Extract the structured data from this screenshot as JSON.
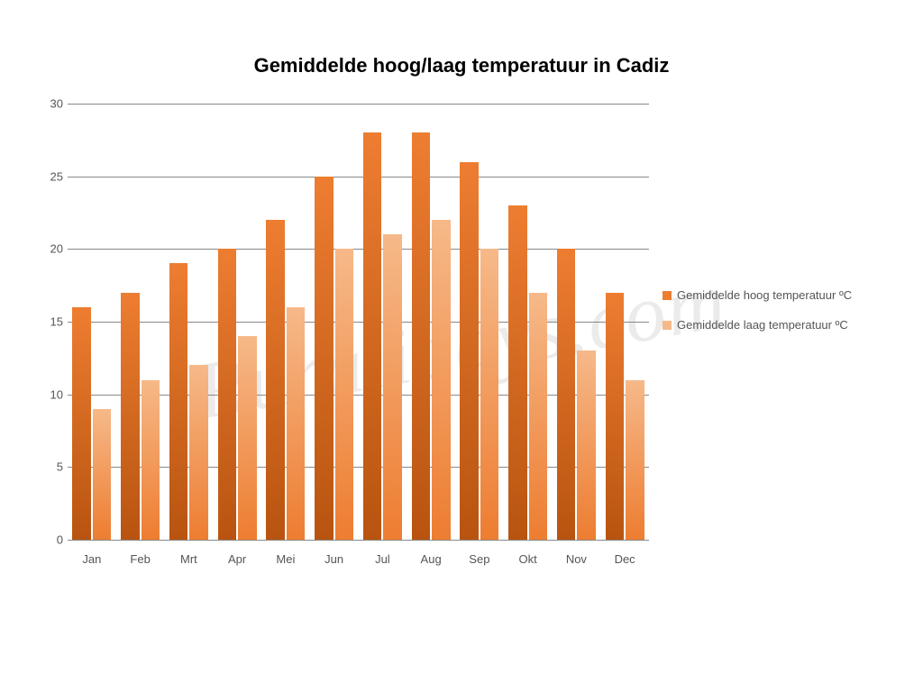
{
  "title": {
    "text": "Gemiddelde hoog/laag temperatuur in Cadiz",
    "fontsize": 22,
    "fontweight": "bold",
    "color": "#000000"
  },
  "watermark": "Ruralidays.com",
  "chart": {
    "type": "bar",
    "categories": [
      "Jan",
      "Feb",
      "Mrt",
      "Apr",
      "Mei",
      "Jun",
      "Jul",
      "Aug",
      "Sep",
      "Okt",
      "Nov",
      "Dec"
    ],
    "series": [
      {
        "name": "Gemiddelde hoog temperatuur ºC",
        "color_top": "#ed7d31",
        "color_bottom": "#b85410",
        "values": [
          16,
          17,
          19,
          20,
          22,
          25,
          28,
          28,
          26,
          23,
          20,
          17
        ]
      },
      {
        "name": "Gemiddelde laag temperatuur ºC",
        "color_top": "#f6b989",
        "color_bottom": "#ed7d31",
        "values": [
          9,
          11,
          12,
          14,
          16,
          20,
          21,
          22,
          20,
          17,
          13,
          11
        ]
      }
    ],
    "ylim": [
      0,
      30
    ],
    "ytick_step": 5,
    "yticks": [
      0,
      5,
      10,
      15,
      20,
      25,
      30
    ],
    "grid_color": "#888888",
    "background_color": "#ffffff",
    "axis_fontsize": 13,
    "axis_color": "#555555",
    "bar_group_gap_pct": 20
  },
  "legend": {
    "items": [
      {
        "label": "Gemiddelde hoog temperatuur ºC",
        "color": "#ed7d31"
      },
      {
        "label": "Gemiddelde laag temperatuur ºC",
        "color": "#f6b989"
      }
    ],
    "fontsize": 13
  }
}
